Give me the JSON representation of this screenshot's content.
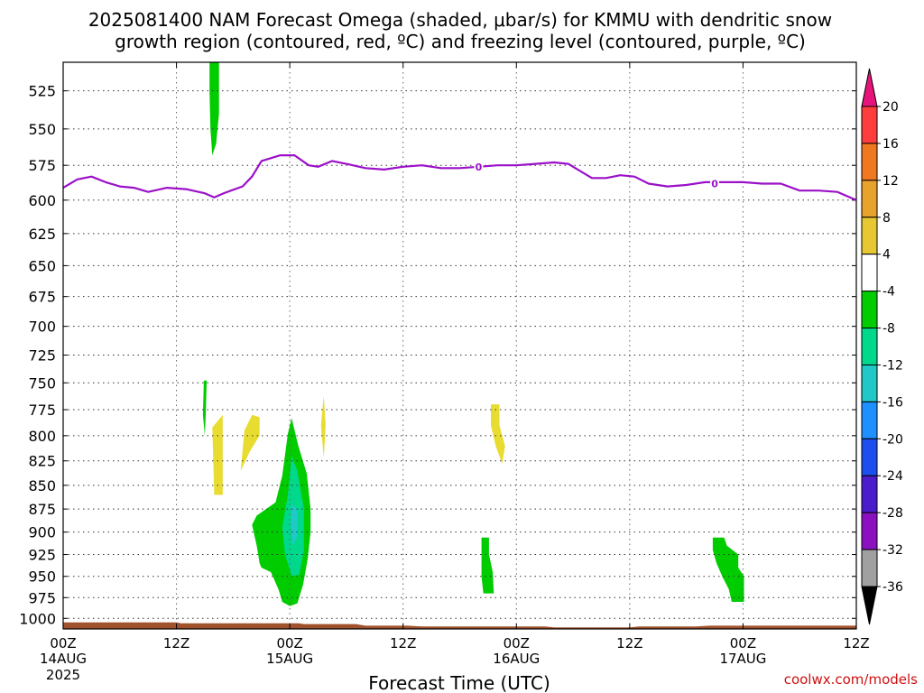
{
  "chart_data": {
    "type": "heatmap",
    "title_line1": "2025081400 NAM Forecast Omega (shaded, μbar/s) for KMMU with dendritic snow",
    "title_line2": "growth region (contoured, red, ºC) and freezing level (contoured, purple, ºC)",
    "xlabel": "Forecast Time (UTC)",
    "credit": "coolwx.com/models",
    "x_range_hours": [
      0,
      84
    ],
    "y_range_mb": [
      507,
      1013
    ],
    "y_scale": "pressure (reversed)",
    "y_ticks": [
      525,
      550,
      575,
      600,
      625,
      650,
      675,
      700,
      725,
      750,
      775,
      800,
      825,
      850,
      875,
      900,
      925,
      950,
      975,
      1000
    ],
    "x_ticks": [
      {
        "h": 0,
        "l1": "00Z",
        "l2": "14AUG",
        "l3": "2025"
      },
      {
        "h": 12,
        "l1": "12Z",
        "l2": "",
        "l3": ""
      },
      {
        "h": 24,
        "l1": "00Z",
        "l2": "15AUG",
        "l3": ""
      },
      {
        "h": 36,
        "l1": "12Z",
        "l2": "",
        "l3": ""
      },
      {
        "h": 48,
        "l1": "00Z",
        "l2": "16AUG",
        "l3": ""
      },
      {
        "h": 60,
        "l1": "12Z",
        "l2": "",
        "l3": ""
      },
      {
        "h": 72,
        "l1": "00Z",
        "l2": "17AUG",
        "l3": ""
      },
      {
        "h": 84,
        "l1": "12Z",
        "l2": "",
        "l3": ""
      }
    ],
    "grid": "dotted",
    "freezing_level": {
      "label": "0",
      "color": "#9b10c8",
      "points": [
        [
          0,
          591
        ],
        [
          1.5,
          585
        ],
        [
          3,
          583
        ],
        [
          4.5,
          587
        ],
        [
          6,
          590
        ],
        [
          7.5,
          591
        ],
        [
          9,
          594
        ],
        [
          11,
          591
        ],
        [
          13,
          592
        ],
        [
          15,
          595
        ],
        [
          16,
          598
        ],
        [
          17,
          595
        ],
        [
          19,
          590
        ],
        [
          20,
          583
        ],
        [
          21,
          572
        ],
        [
          23,
          568
        ],
        [
          24.5,
          568
        ],
        [
          26,
          575
        ],
        [
          27,
          576
        ],
        [
          28.5,
          572
        ],
        [
          30,
          574
        ],
        [
          32,
          577
        ],
        [
          34,
          578
        ],
        [
          36,
          576
        ],
        [
          38,
          575
        ],
        [
          40,
          577
        ],
        [
          42,
          577
        ],
        [
          44,
          576
        ],
        [
          46,
          575
        ],
        [
          48,
          575
        ],
        [
          50,
          574
        ],
        [
          52,
          573
        ],
        [
          53.5,
          574
        ],
        [
          54.5,
          578
        ],
        [
          56,
          584
        ],
        [
          57.5,
          584
        ],
        [
          59,
          582
        ],
        [
          60.5,
          583
        ],
        [
          62,
          588
        ],
        [
          64,
          590
        ],
        [
          66,
          589
        ],
        [
          68,
          587
        ],
        [
          70,
          587
        ],
        [
          72,
          587
        ],
        [
          74,
          588
        ],
        [
          76,
          588
        ],
        [
          78,
          593
        ],
        [
          80,
          593
        ],
        [
          82,
          594
        ],
        [
          83,
          597
        ],
        [
          84,
          600
        ]
      ],
      "label_positions": [
        [
          44,
          576
        ],
        [
          69,
          588
        ]
      ]
    },
    "surface_ground": {
      "color": "#a0522d",
      "points": [
        [
          0,
          1005
        ],
        [
          12,
          1005
        ],
        [
          12.5,
          1006
        ],
        [
          18,
          1006
        ],
        [
          25,
          1006
        ],
        [
          25.5,
          1007
        ],
        [
          31,
          1007
        ],
        [
          32,
          1009
        ],
        [
          36.5,
          1009
        ],
        [
          38,
          1010
        ],
        [
          51,
          1010
        ],
        [
          52,
          1011
        ],
        [
          60,
          1011
        ],
        [
          61,
          1010
        ],
        [
          67,
          1010
        ],
        [
          68.5,
          1009
        ],
        [
          84,
          1009
        ]
      ]
    },
    "omega_colorbar": {
      "levels": [
        "20",
        "16",
        "12",
        "8",
        "4",
        "-4",
        "-8",
        "-12",
        "-16",
        "-20",
        "-24",
        "-28",
        "-32",
        "-36"
      ],
      "colors": [
        "#ff3d3d",
        "#f07820",
        "#e8a22e",
        "#e8c832",
        "#ffffff",
        "#00cc00",
        "#00d98c",
        "#20c8c8",
        "#1e90ff",
        "#1c4ff0",
        "#4a1ccc",
        "#8a10c0",
        "#a0a0a0"
      ],
      "top_arrow_color": "#e6147a",
      "bottom_arrow_color": "#000000"
    },
    "omega_regions": [
      {
        "level": "-4 to -8",
        "color": "#00cc00",
        "points": [
          [
            15.5,
            507
          ],
          [
            16.5,
            507
          ],
          [
            16.5,
            540
          ],
          [
            16.2,
            560
          ],
          [
            15.8,
            568
          ],
          [
            15.6,
            550
          ],
          [
            15.5,
            525
          ]
        ]
      },
      {
        "level": "-4 to -8",
        "color": "#00cc00",
        "points": [
          [
            14.9,
            748
          ],
          [
            15.2,
            748
          ],
          [
            15.1,
            780
          ],
          [
            15,
            800
          ],
          [
            14.8,
            780
          ]
        ]
      },
      {
        "level": "4 to 8",
        "color": "#e8dc30",
        "points": [
          [
            15.8,
            792
          ],
          [
            16.9,
            780
          ],
          [
            16.9,
            860
          ],
          [
            16,
            860
          ]
        ]
      },
      {
        "level": "4 to 8",
        "color": "#e8dc30",
        "points": [
          [
            18.8,
            835
          ],
          [
            19.2,
            795
          ],
          [
            20,
            780
          ],
          [
            20.8,
            782
          ],
          [
            20.8,
            800
          ],
          [
            19.8,
            815
          ]
        ]
      },
      {
        "level": "4 to 8",
        "color": "#e8dc30",
        "points": [
          [
            27.3,
            790
          ],
          [
            27.6,
            762
          ],
          [
            27.8,
            790
          ],
          [
            27.6,
            822
          ]
        ]
      },
      {
        "level": "-4 to -8",
        "color": "#00cc00",
        "points": [
          [
            20,
            892
          ],
          [
            20.5,
            882
          ],
          [
            22.5,
            868
          ],
          [
            23.2,
            840
          ],
          [
            23.8,
            798
          ],
          [
            24.2,
            783
          ],
          [
            24.9,
            810
          ],
          [
            25.8,
            838
          ],
          [
            26.2,
            875
          ],
          [
            26.2,
            900
          ],
          [
            25.9,
            930
          ],
          [
            25.4,
            960
          ],
          [
            24.8,
            982
          ],
          [
            24,
            985
          ],
          [
            23.2,
            980
          ],
          [
            22.8,
            965
          ],
          [
            22,
            945
          ],
          [
            21,
            940
          ],
          [
            20.8,
            935
          ],
          [
            20.5,
            915
          ]
        ]
      },
      {
        "level": "-8 to -12",
        "color": "#00d98c",
        "points": [
          [
            23.8,
            860
          ],
          [
            24.2,
            820
          ],
          [
            24.8,
            835
          ],
          [
            25.5,
            875
          ],
          [
            25.5,
            920
          ],
          [
            25,
            948
          ],
          [
            24.2,
            950
          ],
          [
            23.5,
            925
          ],
          [
            23.2,
            895
          ]
        ]
      },
      {
        "level": "-12 to -16",
        "color": "#20c8c8",
        "points": [
          [
            24.2,
            870
          ],
          [
            24.8,
            875
          ],
          [
            24.8,
            905
          ],
          [
            24.3,
            915
          ],
          [
            24.1,
            895
          ]
        ]
      },
      {
        "level": "4 to 8",
        "color": "#e8dc30",
        "points": [
          [
            45.5,
            770
          ],
          [
            46.2,
            770
          ],
          [
            46.2,
            790
          ],
          [
            46.8,
            810
          ],
          [
            46.5,
            828
          ],
          [
            45.8,
            810
          ],
          [
            45.3,
            790
          ],
          [
            45.3,
            770
          ]
        ]
      },
      {
        "level": "-4 to -8",
        "color": "#00cc00",
        "points": [
          [
            44.3,
            906
          ],
          [
            45.1,
            906
          ],
          [
            45.1,
            925
          ],
          [
            45.5,
            945
          ],
          [
            45.6,
            970
          ],
          [
            44.5,
            970
          ],
          [
            44.3,
            950
          ]
        ]
      },
      {
        "level": "-4 to -8",
        "color": "#00cc00",
        "points": [
          [
            68.8,
            906
          ],
          [
            70,
            906
          ],
          [
            70.3,
            915
          ],
          [
            71.5,
            925
          ],
          [
            71.5,
            940
          ],
          [
            72.1,
            950
          ],
          [
            72.1,
            980
          ],
          [
            70.8,
            980
          ],
          [
            70.5,
            965
          ],
          [
            69.8,
            950
          ],
          [
            69.2,
            935
          ],
          [
            68.8,
            920
          ]
        ]
      }
    ]
  }
}
